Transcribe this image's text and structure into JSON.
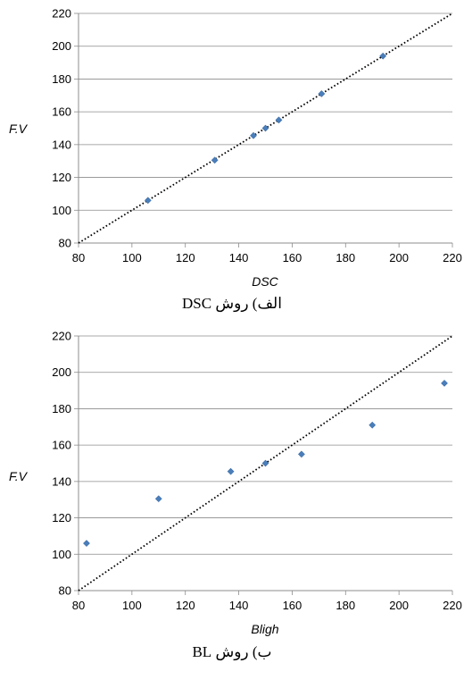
{
  "chart_data": [
    {
      "type": "scatter",
      "xlabel": "DSC",
      "ylabel": "F.V",
      "xlim": [
        80,
        220
      ],
      "ylim": [
        80,
        220
      ],
      "xticks": [
        "80",
        "100",
        "120",
        "140",
        "160",
        "180",
        "200",
        "220"
      ],
      "yticks": [
        "80",
        "100",
        "120",
        "140",
        "160",
        "180",
        "200",
        "220"
      ],
      "grid": "horizontal",
      "reference_line": {
        "style": "dotted",
        "points": [
          [
            80,
            80
          ],
          [
            220,
            220
          ]
        ]
      },
      "series": [
        {
          "color": "#4A7EBB",
          "x": [
            106,
            131,
            145.5,
            150,
            155,
            171,
            194
          ],
          "y": [
            106,
            130.5,
            145.5,
            150,
            155,
            171,
            194
          ]
        }
      ],
      "caption": "الف) روش DSC"
    },
    {
      "type": "scatter",
      "xlabel": "Bligh",
      "ylabel": "F.V",
      "xlim": [
        80,
        220
      ],
      "ylim": [
        80,
        220
      ],
      "xticks": [
        "80",
        "100",
        "120",
        "140",
        "160",
        "180",
        "200",
        "220"
      ],
      "yticks": [
        "80",
        "100",
        "120",
        "140",
        "160",
        "180",
        "200",
        "220"
      ],
      "grid": "horizontal",
      "reference_line": {
        "style": "dotted",
        "points": [
          [
            80,
            80
          ],
          [
            220,
            220
          ]
        ]
      },
      "series": [
        {
          "color": "#4A7EBB",
          "x": [
            83,
            110,
            137,
            150,
            163.5,
            190,
            217
          ],
          "y": [
            106,
            130.5,
            145.5,
            150,
            155,
            171,
            194
          ]
        }
      ],
      "caption": "ب) روش BL"
    }
  ]
}
